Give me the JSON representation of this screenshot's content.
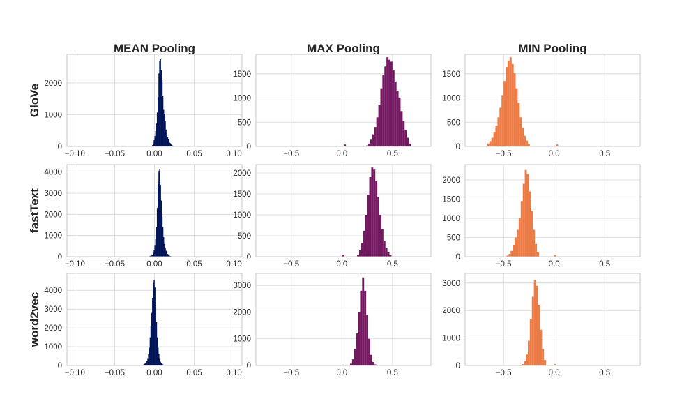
{
  "colors": {
    "mean": "#001558",
    "max": "#731961",
    "min": "#ec7b45",
    "grid": "#d4d4d4",
    "spine": "#c8c8c8",
    "text": "#262626"
  },
  "columns": [
    "MEAN Pooling",
    "MAX Pooling",
    "MIN Pooling"
  ],
  "rows": [
    "GloVe",
    "fastText",
    "word2vec"
  ],
  "chart_data": [
    {
      "type": "bar",
      "row": "GloVe",
      "column": "MEAN Pooling",
      "xlim": [
        -0.11,
        0.11
      ],
      "ylim": [
        0,
        2900
      ],
      "xticks": [
        -0.1,
        -0.05,
        0.0,
        0.05,
        0.1
      ],
      "xtick_labels": [
        "−0.10",
        "−0.05",
        "0.00",
        "0.05",
        "0.10"
      ],
      "yticks": [
        0,
        1000,
        2000
      ],
      "ytick_labels": [
        "0",
        "1000",
        "2000"
      ],
      "bins": [
        -0.004,
        -0.003,
        -0.002,
        -0.001,
        0.0,
        0.001,
        0.002,
        0.003,
        0.004,
        0.005,
        0.006,
        0.007,
        0.008,
        0.009,
        0.01,
        0.011,
        0.012,
        0.013,
        0.014,
        0.015,
        0.016,
        0.017,
        0.018,
        0.019,
        0.02,
        0.021,
        0.022,
        0.023,
        0.024,
        0.025
      ],
      "counts": [
        10,
        40,
        100,
        200,
        330,
        480,
        720,
        1070,
        1560,
        2300,
        2700,
        2750,
        2400,
        2100,
        1600,
        1150,
        1030,
        800,
        530,
        380,
        290,
        220,
        160,
        110,
        70,
        45,
        30,
        15,
        8,
        4
      ]
    },
    {
      "type": "bar",
      "row": "GloVe",
      "column": "MAX Pooling",
      "xlim": [
        -0.85,
        0.88
      ],
      "ylim": [
        0,
        1900
      ],
      "xticks": [
        -0.5,
        0.0,
        0.5
      ],
      "xtick_labels": [
        "−0.5",
        "0.0",
        "0.5"
      ],
      "yticks": [
        0,
        500,
        1000,
        1500
      ],
      "ytick_labels": [
        "0",
        "500",
        "1000",
        "1500"
      ],
      "bins": [
        0.02,
        0.24,
        0.26,
        0.28,
        0.3,
        0.32,
        0.34,
        0.36,
        0.38,
        0.4,
        0.42,
        0.44,
        0.46,
        0.48,
        0.5,
        0.52,
        0.54,
        0.56,
        0.58,
        0.6,
        0.62,
        0.64,
        0.66
      ],
      "counts": [
        40,
        20,
        60,
        140,
        250,
        400,
        600,
        850,
        1200,
        1480,
        1650,
        1840,
        1790,
        1750,
        1580,
        1340,
        1150,
        1010,
        730,
        520,
        330,
        180,
        60
      ]
    },
    {
      "type": "bar",
      "row": "GloVe",
      "column": "MIN Pooling",
      "xlim": [
        -0.88,
        0.85
      ],
      "ylim": [
        0,
        1900
      ],
      "xticks": [
        -0.5,
        0.0,
        0.5
      ],
      "xtick_labels": [
        "−0.5",
        "0.0",
        "0.5"
      ],
      "yticks": [
        0,
        500,
        1000,
        1500
      ],
      "ytick_labels": [
        "0",
        "500",
        "1000",
        "1500"
      ],
      "bins": [
        -0.66,
        -0.64,
        -0.62,
        -0.6,
        -0.58,
        -0.56,
        -0.54,
        -0.52,
        -0.5,
        -0.48,
        -0.46,
        -0.44,
        -0.42,
        -0.4,
        -0.38,
        -0.36,
        -0.34,
        -0.32,
        -0.3,
        -0.28,
        -0.26,
        0.02
      ],
      "counts": [
        60,
        110,
        180,
        300,
        430,
        600,
        800,
        1060,
        1350,
        1640,
        1770,
        1840,
        1700,
        1510,
        1200,
        900,
        600,
        390,
        220,
        120,
        50,
        40
      ]
    },
    {
      "type": "bar",
      "row": "fastText",
      "column": "MEAN Pooling",
      "xlim": [
        -0.11,
        0.11
      ],
      "ylim": [
        0,
        4350
      ],
      "xticks": [
        -0.1,
        -0.05,
        0.0,
        0.05,
        0.1
      ],
      "xtick_labels": [
        "−0.10",
        "−0.05",
        "0.00",
        "0.05",
        "0.10"
      ],
      "yticks": [
        0,
        1000,
        2000,
        3000,
        4000
      ],
      "ytick_labels": [
        "0",
        "1000",
        "2000",
        "3000",
        "4000"
      ],
      "bins": [
        -0.006,
        -0.005,
        -0.004,
        -0.003,
        -0.002,
        -0.001,
        0.0,
        0.001,
        0.002,
        0.003,
        0.004,
        0.005,
        0.006,
        0.007,
        0.008,
        0.009,
        0.01,
        0.011,
        0.012,
        0.013,
        0.014,
        0.015,
        0.016,
        0.017,
        0.018,
        0.019,
        0.02,
        0.021
      ],
      "counts": [
        40,
        30,
        60,
        100,
        180,
        300,
        520,
        850,
        1400,
        2300,
        3450,
        4050,
        4150,
        3400,
        2650,
        1900,
        1400,
        920,
        600,
        430,
        280,
        200,
        130,
        90,
        55,
        35,
        20,
        10
      ]
    },
    {
      "type": "bar",
      "row": "fastText",
      "column": "MAX Pooling",
      "xlim": [
        -0.85,
        0.88
      ],
      "ylim": [
        0,
        2200
      ],
      "xticks": [
        -0.5,
        0.0,
        0.5
      ],
      "xtick_labels": [
        "−0.5",
        "0.0",
        "0.5"
      ],
      "yticks": [
        0,
        500,
        1000,
        1500,
        2000
      ],
      "ytick_labels": [
        "0",
        "500",
        "1000",
        "1500",
        "2000"
      ],
      "bins": [
        0.0,
        0.15,
        0.17,
        0.19,
        0.21,
        0.23,
        0.25,
        0.27,
        0.29,
        0.31,
        0.33,
        0.35,
        0.37,
        0.39,
        0.41,
        0.43,
        0.45,
        0.47
      ],
      "counts": [
        50,
        40,
        150,
        330,
        620,
        1000,
        1480,
        1900,
        2130,
        2080,
        1800,
        1420,
        1000,
        650,
        380,
        200,
        100,
        40
      ]
    },
    {
      "type": "bar",
      "row": "fastText",
      "column": "MIN Pooling",
      "xlim": [
        -0.88,
        0.85
      ],
      "ylim": [
        0,
        2400
      ],
      "xticks": [
        -0.5,
        0.0,
        0.5
      ],
      "xtick_labels": [
        "−0.5",
        "0.0",
        "0.5"
      ],
      "yticks": [
        0,
        500,
        1000,
        1500,
        2000
      ],
      "ytick_labels": [
        "0",
        "500",
        "1000",
        "1500",
        "2000"
      ],
      "bins": [
        -0.47,
        -0.45,
        -0.43,
        -0.41,
        -0.39,
        -0.37,
        -0.35,
        -0.33,
        -0.31,
        -0.29,
        -0.27,
        -0.25,
        -0.23,
        -0.21,
        -0.19,
        -0.17,
        0.0
      ],
      "counts": [
        30,
        70,
        150,
        300,
        500,
        700,
        1000,
        1450,
        1900,
        2260,
        2150,
        1700,
        1200,
        700,
        330,
        120,
        40
      ]
    },
    {
      "type": "bar",
      "row": "word2vec",
      "column": "MEAN Pooling",
      "xlim": [
        -0.11,
        0.11
      ],
      "ylim": [
        0,
        4900
      ],
      "xticks": [
        -0.1,
        -0.05,
        0.0,
        0.05,
        0.1
      ],
      "xtick_labels": [
        "−0.10",
        "−0.05",
        "0.00",
        "0.05",
        "0.10"
      ],
      "yticks": [
        0,
        1000,
        2000,
        3000,
        4000
      ],
      "ytick_labels": [
        "0",
        "1000",
        "2000",
        "3000",
        "4000"
      ],
      "bins": [
        -0.014,
        -0.013,
        -0.012,
        -0.011,
        -0.01,
        -0.009,
        -0.008,
        -0.007,
        -0.006,
        -0.005,
        -0.004,
        -0.003,
        -0.002,
        -0.001,
        0.0,
        0.001,
        0.002,
        0.003,
        0.004,
        0.005,
        0.006,
        0.007,
        0.008,
        0.009,
        0.01,
        0.011,
        0.012
      ],
      "counts": [
        60,
        90,
        130,
        180,
        250,
        350,
        600,
        950,
        1500,
        2100,
        2800,
        3600,
        4400,
        4550,
        4150,
        3200,
        2300,
        1500,
        950,
        600,
        350,
        200,
        120,
        80,
        60,
        40,
        30
      ]
    },
    {
      "type": "bar",
      "row": "word2vec",
      "column": "MAX Pooling",
      "xlim": [
        -0.85,
        0.88
      ],
      "ylim": [
        0,
        3450
      ],
      "xticks": [
        -0.5,
        0.0,
        0.5
      ],
      "xtick_labels": [
        "−0.5",
        "0.0",
        "0.5"
      ],
      "yticks": [
        0,
        1000,
        2000,
        3000
      ],
      "ytick_labels": [
        "0",
        "1000",
        "2000",
        "3000"
      ],
      "bins": [
        0.0,
        0.08,
        0.1,
        0.12,
        0.14,
        0.16,
        0.18,
        0.2,
        0.22,
        0.24,
        0.26,
        0.28,
        0.3,
        0.32
      ],
      "counts": [
        30,
        70,
        230,
        600,
        1200,
        2000,
        2800,
        3300,
        2800,
        1900,
        1000,
        400,
        130,
        40
      ]
    },
    {
      "type": "bar",
      "row": "word2vec",
      "column": "MIN Pooling",
      "xlim": [
        -0.88,
        0.85
      ],
      "ylim": [
        0,
        3350
      ],
      "xticks": [
        -0.5,
        0.0,
        0.5
      ],
      "xtick_labels": [
        "−0.5",
        "0.0",
        "0.5"
      ],
      "yticks": [
        0,
        1000,
        2000,
        3000
      ],
      "ytick_labels": [
        "0",
        "1000",
        "2000",
        "3000"
      ],
      "bins": [
        -0.32,
        -0.3,
        -0.28,
        -0.26,
        -0.24,
        -0.22,
        -0.2,
        -0.18,
        -0.16,
        -0.14,
        -0.12,
        -0.1,
        0.0
      ],
      "counts": [
        50,
        150,
        400,
        900,
        1700,
        2500,
        3100,
        2900,
        2200,
        1300,
        600,
        200,
        50
      ]
    }
  ]
}
